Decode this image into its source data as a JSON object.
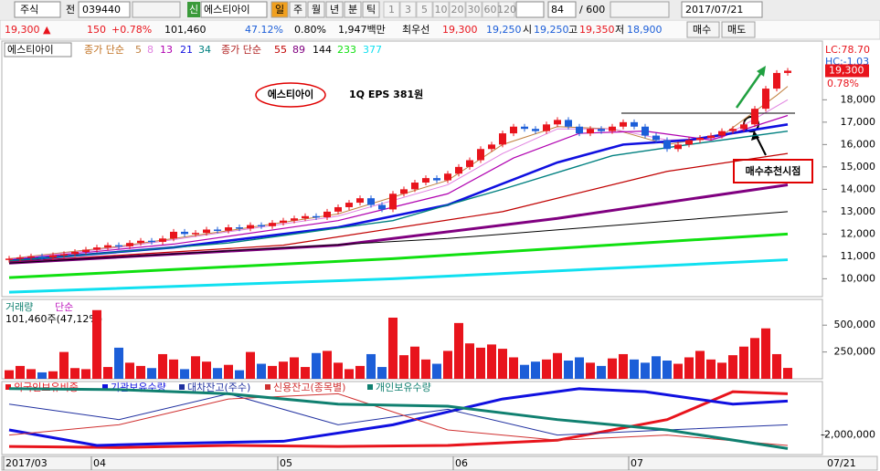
{
  "toolbar": {
    "market": "주식",
    "code": "039440",
    "prefix": "전",
    "credit": "신",
    "name": "에스티아이",
    "periods": [
      "일",
      "주",
      "월",
      "년",
      "분",
      "틱"
    ],
    "intervals": [
      "1",
      "3",
      "5",
      "10",
      "20",
      "30",
      "60",
      "120"
    ],
    "count": "84",
    "total": "/ 600",
    "date": "2017/07/21"
  },
  "quote": {
    "price": "19,300 ▲",
    "change": "150",
    "rate": "+0.78%",
    "volume": "101,460",
    "turnover": "47.12%",
    "ratio": "0.80%",
    "amount": "1,947백만",
    "best": "최우선",
    "ask": "19,300",
    "bid": "19,250",
    "open_label": "시",
    "open": "19,250",
    "high_label": "고",
    "high": "19,350",
    "low_label": "저",
    "low": "18,900",
    "buy": "매수",
    "sell": "매도"
  },
  "chart_data": [
    {
      "type": "candlestick",
      "title": "에스티아이",
      "ma_label_1": "종가 단순",
      "ma_label_2": "종가 단순",
      "categories": [
        "2017/03",
        null,
        null,
        null,
        null,
        null,
        null,
        null,
        "04",
        null,
        null,
        null,
        null,
        null,
        null,
        null,
        null,
        null,
        null,
        null,
        null,
        null,
        null,
        null,
        null,
        "05",
        null,
        null,
        null,
        null,
        null,
        null,
        null,
        null,
        null,
        null,
        null,
        null,
        null,
        null,
        null,
        "06",
        null,
        null,
        null,
        null,
        null,
        null,
        null,
        null,
        null,
        null,
        null,
        null,
        null,
        null,
        null,
        "07",
        null,
        null,
        null,
        null,
        null,
        null,
        null,
        null,
        null,
        null,
        null,
        null,
        null,
        null
      ],
      "last_date": "07/21",
      "open": [
        10850,
        10900,
        10950,
        11000,
        10950,
        11050,
        11100,
        11200,
        11300,
        11400,
        11500,
        11450,
        11600,
        11700,
        11650,
        11800,
        12100,
        12000,
        12050,
        12200,
        12150,
        12300,
        12250,
        12400,
        12350,
        12500,
        12600,
        12700,
        12800,
        12750,
        13000,
        13200,
        13400,
        13600,
        13300,
        13100,
        13800,
        14000,
        14300,
        14500,
        14400,
        14700,
        15000,
        15300,
        15800,
        16000,
        16500,
        16800,
        16700,
        16600,
        16900,
        17100,
        16800,
        16500,
        16700,
        16600,
        16800,
        17000,
        16800,
        16400,
        16200,
        15800,
        16000,
        16200,
        16300,
        16400,
        16600,
        16700,
        16900,
        17600,
        18500,
        19200
      ],
      "close": [
        10900,
        10950,
        11000,
        10950,
        11050,
        11100,
        11200,
        11300,
        11400,
        11500,
        11450,
        11600,
        11700,
        11650,
        11800,
        12100,
        12000,
        12050,
        12200,
        12150,
        12300,
        12250,
        12400,
        12350,
        12500,
        12600,
        12700,
        12800,
        12750,
        13000,
        13200,
        13400,
        13600,
        13300,
        13100,
        13800,
        14000,
        14300,
        14500,
        14400,
        14700,
        15000,
        15300,
        15800,
        16000,
        16500,
        16800,
        16700,
        16600,
        16900,
        17100,
        16800,
        16500,
        16700,
        16600,
        16800,
        17000,
        16800,
        16400,
        16200,
        15800,
        16000,
        16200,
        16300,
        16400,
        16600,
        16700,
        16900,
        17600,
        18500,
        19200,
        19300
      ],
      "up_color": "#e8141c",
      "down_color": "#1c5ed8",
      "ylim": [
        9200,
        19850
      ],
      "yticks": [
        {
          "value": 10000,
          "label": "10,000"
        },
        {
          "value": 11000,
          "label": "11,000"
        },
        {
          "value": 12000,
          "label": "12,000"
        },
        {
          "value": 13000,
          "label": "13,000"
        },
        {
          "value": 14000,
          "label": "14,000"
        },
        {
          "value": 15000,
          "label": "15,000"
        },
        {
          "value": 16000,
          "label": "16,000"
        },
        {
          "value": 17000,
          "label": "17,000"
        },
        {
          "value": 18000,
          "label": "18,000"
        }
      ],
      "moving_averages": [
        {
          "period": 5,
          "color": "#c08040",
          "x": [
            0,
            10,
            20,
            30,
            40,
            45,
            50,
            55,
            60,
            65,
            70,
            71
          ],
          "values": [
            10900,
            11450,
            12150,
            12900,
            14400,
            16000,
            16800,
            16700,
            16000,
            16400,
            18200,
            18600
          ]
        },
        {
          "period": 8,
          "color": "#e080e0",
          "x": [
            0,
            10,
            20,
            30,
            40,
            45,
            50,
            55,
            60,
            65,
            71
          ],
          "values": [
            10880,
            11400,
            12100,
            12800,
            14200,
            15600,
            16700,
            16700,
            16200,
            16300,
            18000
          ]
        },
        {
          "period": 13,
          "color": "#b000b0",
          "x": [
            0,
            15,
            30,
            40,
            46,
            52,
            58,
            64,
            71
          ],
          "values": [
            10850,
            11550,
            12600,
            13800,
            15400,
            16500,
            16600,
            16200,
            17300
          ]
        },
        {
          "period": 21,
          "color": "#1010e0",
          "x": [
            0,
            15,
            30,
            40,
            50,
            56,
            62,
            71
          ],
          "values": [
            10800,
            11400,
            12300,
            13300,
            15200,
            16000,
            16200,
            16900
          ]
        },
        {
          "period": 34,
          "color": "#008080",
          "x": [
            0,
            20,
            35,
            45,
            55,
            62,
            71
          ],
          "values": [
            10800,
            11600,
            12600,
            14000,
            15500,
            16000,
            16600
          ]
        },
        {
          "period": 55,
          "color": "#c00000",
          "x": [
            0,
            25,
            45,
            60,
            71
          ],
          "values": [
            10750,
            11500,
            13000,
            14800,
            15600
          ]
        },
        {
          "period": 89,
          "color": "#800080",
          "x": [
            0,
            30,
            50,
            71
          ],
          "values": [
            10700,
            11500,
            12700,
            14200
          ]
        },
        {
          "period": 144,
          "color": "#000000",
          "x": [
            0,
            40,
            71
          ],
          "values": [
            10700,
            11800,
            13000
          ]
        },
        {
          "period": 233,
          "color": "#10e010",
          "x": [
            0,
            35,
            71
          ],
          "values": [
            10050,
            10900,
            12000
          ]
        },
        {
          "period": 377,
          "color": "#10e0f0",
          "x": [
            0,
            35,
            71
          ],
          "values": [
            9400,
            10000,
            10850
          ]
        }
      ],
      "lc": "LC:78.70",
      "hc": "HC:-1.03",
      "last_price": {
        "value": 19300,
        "label": "19,300"
      },
      "last_rate": "0.78%",
      "annotations": {
        "name": "에스티아이",
        "eps": "1Q EPS 381원",
        "buy_point": "매수추천시점"
      },
      "hline": 17400
    },
    {
      "type": "bar",
      "title": "거래량",
      "subtitle": "단순",
      "summary": "101,460주(47,12%)",
      "values": [
        80000,
        120000,
        90000,
        60000,
        70000,
        250000,
        100000,
        90000,
        640000,
        110000,
        290000,
        150000,
        120000,
        100000,
        230000,
        180000,
        90000,
        210000,
        160000,
        100000,
        130000,
        80000,
        250000,
        140000,
        120000,
        160000,
        200000,
        110000,
        240000,
        260000,
        150000,
        90000,
        120000,
        230000,
        110000,
        570000,
        220000,
        300000,
        180000,
        140000,
        260000,
        520000,
        330000,
        290000,
        320000,
        280000,
        200000,
        130000,
        160000,
        180000,
        240000,
        170000,
        200000,
        150000,
        120000,
        190000,
        230000,
        180000,
        150000,
        210000,
        170000,
        140000,
        200000,
        260000,
        180000,
        150000,
        220000,
        300000,
        380000,
        470000,
        230000,
        101460
      ],
      "ylim": [
        0,
        740000
      ],
      "yticks": [
        {
          "value": 250000,
          "label": "250,000"
        },
        {
          "value": 500000,
          "label": "500,000"
        }
      ]
    },
    {
      "type": "line",
      "ylim": [
        -3800000,
        3100000
      ],
      "yticks": [
        {
          "value": -2000000,
          "label": "-2,000,000"
        }
      ],
      "series": [
        {
          "name": "외국인보유비중",
          "color": "#e8141c",
          "x": [
            0,
            10,
            20,
            30,
            40,
            50,
            60,
            66,
            71
          ],
          "values": [
            -3100000,
            -3200000,
            -3000000,
            -3100000,
            -3000000,
            -2500000,
            -500000,
            2200000,
            2000000
          ]
        },
        {
          "name": "기관보유수량",
          "color": "#1010e0",
          "x": [
            0,
            8,
            15,
            25,
            35,
            45,
            52,
            58,
            66,
            71
          ],
          "values": [
            -1500000,
            -3000000,
            -2800000,
            -2600000,
            -1000000,
            1500000,
            2500000,
            2200000,
            1000000,
            1300000
          ]
        },
        {
          "name": "대차잔고(주수)",
          "color": "#2030a0",
          "x": [
            0,
            10,
            20,
            30,
            40,
            50,
            60,
            71
          ],
          "values": [
            1000000,
            -500000,
            2000000,
            -1000000,
            500000,
            -2000000,
            -1500000,
            -1000000
          ]
        },
        {
          "name": "신용잔고(종목별)",
          "color": "#d03030",
          "x": [
            0,
            10,
            20,
            30,
            40,
            50,
            60,
            71
          ],
          "values": [
            -2000000,
            -1000000,
            1500000,
            2000000,
            -1500000,
            -2500000,
            -2000000,
            -3000000
          ]
        },
        {
          "name": "개인보유수량",
          "color": "#108070",
          "x": [
            0,
            10,
            20,
            30,
            40,
            50,
            60,
            71
          ],
          "values": [
            2500000,
            2400000,
            2000000,
            1000000,
            800000,
            -500000,
            -1500000,
            -3300000
          ]
        }
      ]
    }
  ]
}
